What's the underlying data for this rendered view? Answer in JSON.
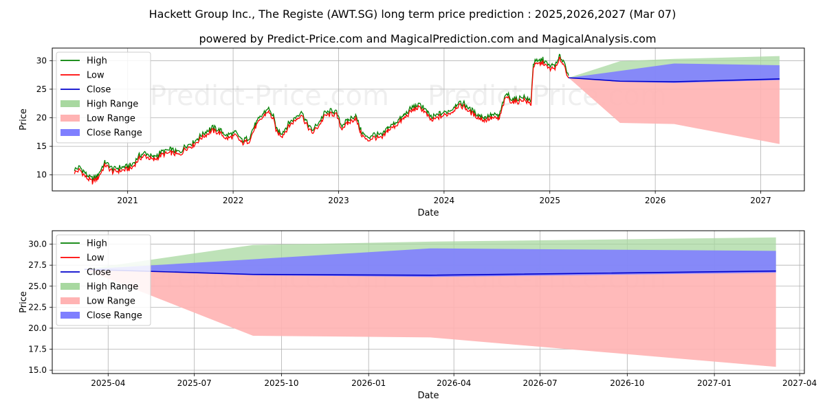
{
  "header": {
    "title": "Hackett Group Inc., The Registe (AWT.SG) long term price prediction : 2025,2026,2027 (Mar 07)",
    "subtitle": "powered by Predict-Price.com and MagicalPrediction.com and MagicalAnalysis.com"
  },
  "watermark": "Predict-Price.com",
  "colors": {
    "high": "#008000",
    "low": "#ff0000",
    "close": "#0000cc",
    "high_range": "#a8d8a0",
    "low_range": "#ffb3b3",
    "close_range": "#7f7fff"
  },
  "legend": {
    "placement": "upper-left",
    "items": [
      "High",
      "Low",
      "Close",
      "High Range",
      "Low Range",
      "Close Range"
    ]
  },
  "chart_data": [
    {
      "type": "line",
      "panel": "history",
      "xlabel": "Date",
      "ylabel": "Price",
      "xlim": [
        "2020-04-15",
        "2027-06-01"
      ],
      "ylim": [
        7.2,
        32.2
      ],
      "x_ticks": [
        "2021",
        "2022",
        "2023",
        "2024",
        "2025",
        "2026",
        "2027"
      ],
      "y_ticks": [
        10,
        15,
        20,
        25,
        30
      ],
      "grid": true,
      "history_price": [
        [
          "2020-07-01",
          10.5
        ],
        [
          "2020-07-20",
          10.9
        ],
        [
          "2020-08-10",
          9.6
        ],
        [
          "2020-09-01",
          8.8
        ],
        [
          "2020-09-20",
          9.5
        ],
        [
          "2020-10-15",
          11.8
        ],
        [
          "2020-11-10",
          10.6
        ],
        [
          "2020-12-10",
          10.8
        ],
        [
          "2021-01-15",
          11.2
        ],
        [
          "2021-02-10",
          12.9
        ],
        [
          "2021-03-01",
          13.4
        ],
        [
          "2021-04-01",
          12.6
        ],
        [
          "2021-05-01",
          13.6
        ],
        [
          "2021-06-01",
          13.9
        ],
        [
          "2021-07-01",
          13.5
        ],
        [
          "2021-07-20",
          14.7
        ],
        [
          "2021-08-15",
          15.2
        ],
        [
          "2021-09-15",
          16.6
        ],
        [
          "2021-10-20",
          17.8
        ],
        [
          "2021-11-15",
          17.4
        ],
        [
          "2021-12-10",
          16.4
        ],
        [
          "2022-01-10",
          16.9
        ],
        [
          "2022-02-01",
          15.6
        ],
        [
          "2022-02-25",
          16.0
        ],
        [
          "2022-03-20",
          18.5
        ],
        [
          "2022-04-10",
          19.9
        ],
        [
          "2022-05-01",
          21.2
        ],
        [
          "2022-05-20",
          19.8
        ],
        [
          "2022-06-01",
          17.5
        ],
        [
          "2022-06-20",
          16.9
        ],
        [
          "2022-07-15",
          18.7
        ],
        [
          "2022-08-10",
          19.9
        ],
        [
          "2022-08-25",
          20.7
        ],
        [
          "2022-09-10",
          19.0
        ],
        [
          "2022-10-01",
          17.3
        ],
        [
          "2022-10-25",
          18.7
        ],
        [
          "2022-11-15",
          20.4
        ],
        [
          "2022-12-10",
          20.7
        ],
        [
          "2022-12-25",
          20.5
        ],
        [
          "2023-01-10",
          18.2
        ],
        [
          "2023-02-01",
          19.0
        ],
        [
          "2023-03-01",
          20.0
        ],
        [
          "2023-03-20",
          17.2
        ],
        [
          "2023-04-10",
          16.0
        ],
        [
          "2023-05-01",
          16.6
        ],
        [
          "2023-06-01",
          16.4
        ],
        [
          "2023-06-20",
          17.8
        ],
        [
          "2023-07-15",
          18.6
        ],
        [
          "2023-08-15",
          19.9
        ],
        [
          "2023-09-10",
          21.2
        ],
        [
          "2023-10-01",
          21.8
        ],
        [
          "2023-10-20",
          21.5
        ],
        [
          "2023-11-05",
          20.3
        ],
        [
          "2023-11-20",
          19.5
        ],
        [
          "2023-12-15",
          20.2
        ],
        [
          "2024-01-10",
          20.6
        ],
        [
          "2024-02-01",
          21.2
        ],
        [
          "2024-02-15",
          22.1
        ],
        [
          "2024-03-10",
          22.0
        ],
        [
          "2024-04-01",
          21.0
        ],
        [
          "2024-05-01",
          20.0
        ],
        [
          "2024-05-20",
          19.6
        ],
        [
          "2024-06-15",
          20.0
        ],
        [
          "2024-07-10",
          19.8
        ],
        [
          "2024-07-25",
          22.5
        ],
        [
          "2024-08-05",
          23.8
        ],
        [
          "2024-08-20",
          22.9
        ],
        [
          "2024-09-10",
          22.8
        ],
        [
          "2024-10-01",
          23.3
        ],
        [
          "2024-10-20",
          22.6
        ],
        [
          "2024-10-28",
          22.5
        ],
        [
          "2024-11-05",
          29.1
        ],
        [
          "2024-11-20",
          29.4
        ],
        [
          "2024-12-10",
          29.7
        ],
        [
          "2024-12-25",
          28.7
        ],
        [
          "2025-01-10",
          28.6
        ],
        [
          "2025-01-25",
          29.0
        ],
        [
          "2025-02-05",
          30.4
        ],
        [
          "2025-02-20",
          29.2
        ],
        [
          "2025-03-07",
          27.0
        ]
      ],
      "forecast": {
        "dates": [
          "2025-03-07",
          "2025-09-01",
          "2026-03-07",
          "2027-03-07"
        ],
        "high_range_top": [
          27.0,
          29.9,
          30.3,
          30.8
        ],
        "close_range_top": [
          27.0,
          28.2,
          29.5,
          29.2
        ],
        "close_range_bottom": [
          27.0,
          26.3,
          26.1,
          26.6
        ],
        "low_range_bottom": [
          27.0,
          19.1,
          18.9,
          15.4
        ],
        "close": [
          27.0,
          26.4,
          26.3,
          26.8
        ]
      }
    },
    {
      "type": "area",
      "panel": "forecast",
      "xlabel": "Date",
      "ylabel": "Price",
      "xlim": [
        "2025-02-01",
        "2027-04-06"
      ],
      "ylim": [
        14.6,
        31.6
      ],
      "x_ticks": [
        "2025-04",
        "2025-07",
        "2025-10",
        "2026-01",
        "2026-04",
        "2026-07",
        "2026-10",
        "2027-01",
        "2027-04"
      ],
      "y_ticks": [
        "15.0",
        "17.5",
        "20.0",
        "22.5",
        "25.0",
        "27.5",
        "30.0"
      ],
      "grid": true,
      "dates": [
        "2025-03-07",
        "2025-09-01",
        "2026-03-07",
        "2027-03-07"
      ],
      "high_range_top": [
        27.0,
        29.9,
        30.3,
        30.8
      ],
      "close_range_top": [
        27.0,
        28.2,
        29.5,
        29.2
      ],
      "close_range_bottom": [
        27.0,
        26.3,
        26.1,
        26.6
      ],
      "low_range_bottom": [
        27.0,
        19.1,
        18.9,
        15.4
      ],
      "close": [
        27.0,
        26.4,
        26.3,
        26.8
      ]
    }
  ]
}
